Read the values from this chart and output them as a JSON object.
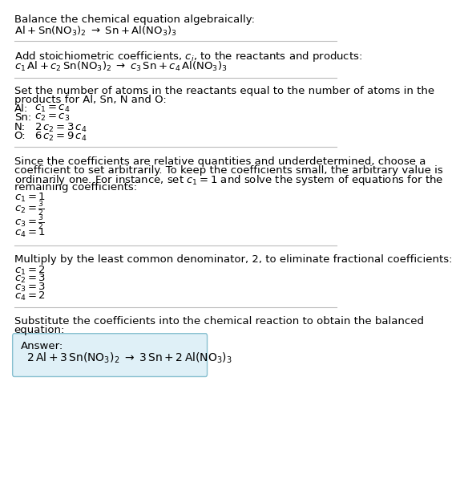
{
  "bg_color": "#ffffff",
  "text_color": "#000000",
  "answer_box_color": "#dff0f7",
  "answer_box_edge": "#88c0d0",
  "section1_title": "Balance the chemical equation algebraically:",
  "section1_eq": "$\\mathrm{Al + Sn(NO_3)_2 \\;\\rightarrow\\; Sn + Al(NO_3)_3}$",
  "section2_title_a": "Add stoichiometric coefficients, ",
  "section2_title_b": ", to the reactants and products:",
  "section2_eq": "$c_1\\,\\mathrm{Al} + c_2\\,\\mathrm{Sn(NO_3)_2} \\;\\rightarrow\\; c_3\\,\\mathrm{Sn} + c_4\\,\\mathrm{Al(NO_3)_3}$",
  "section3_title": "Set the number of atoms in the reactants equal to the number of atoms in the\nproducts for Al, Sn, N and O:",
  "section3_lines": [
    [
      "Al:",
      "$c_1 = c_4$"
    ],
    [
      "Sn:",
      "$c_2 = c_3$"
    ],
    [
      "N:",
      "$2\\,c_2 = 3\\,c_4$"
    ],
    [
      "O:",
      "$6\\,c_2 = 9\\,c_4$"
    ]
  ],
  "section4_title_parts": [
    "Since the coefficients are relative quantities and underdetermined, choose a",
    "coefficient to set arbitrarily. To keep the coefficients small, the arbitrary value is",
    "ordinarily one. For instance, set $c_1 = 1$ and solve the system of equations for the",
    "remaining coefficients:"
  ],
  "section4_lines": [
    "$c_1 = 1$",
    "$c_2 = \\frac{3}{2}$",
    "$c_3 = \\frac{3}{2}$",
    "$c_4 = 1$"
  ],
  "section5_title": "Multiply by the least common denominator, 2, to eliminate fractional coefficients:",
  "section5_lines": [
    "$c_1 = 2$",
    "$c_2 = 3$",
    "$c_3 = 3$",
    "$c_4 = 2$"
  ],
  "section6_title": "Substitute the coefficients into the chemical reaction to obtain the balanced\nequation:",
  "answer_label": "Answer:",
  "answer_eq": "$\\mathrm{2\\,Al + 3\\,Sn(NO_3)_2 \\;\\rightarrow\\; 3\\,Sn + 2\\,Al(NO_3)_3}$",
  "font_size_body": 9.5,
  "font_size_eq": 9.5,
  "line_color": "#bbbbbb"
}
